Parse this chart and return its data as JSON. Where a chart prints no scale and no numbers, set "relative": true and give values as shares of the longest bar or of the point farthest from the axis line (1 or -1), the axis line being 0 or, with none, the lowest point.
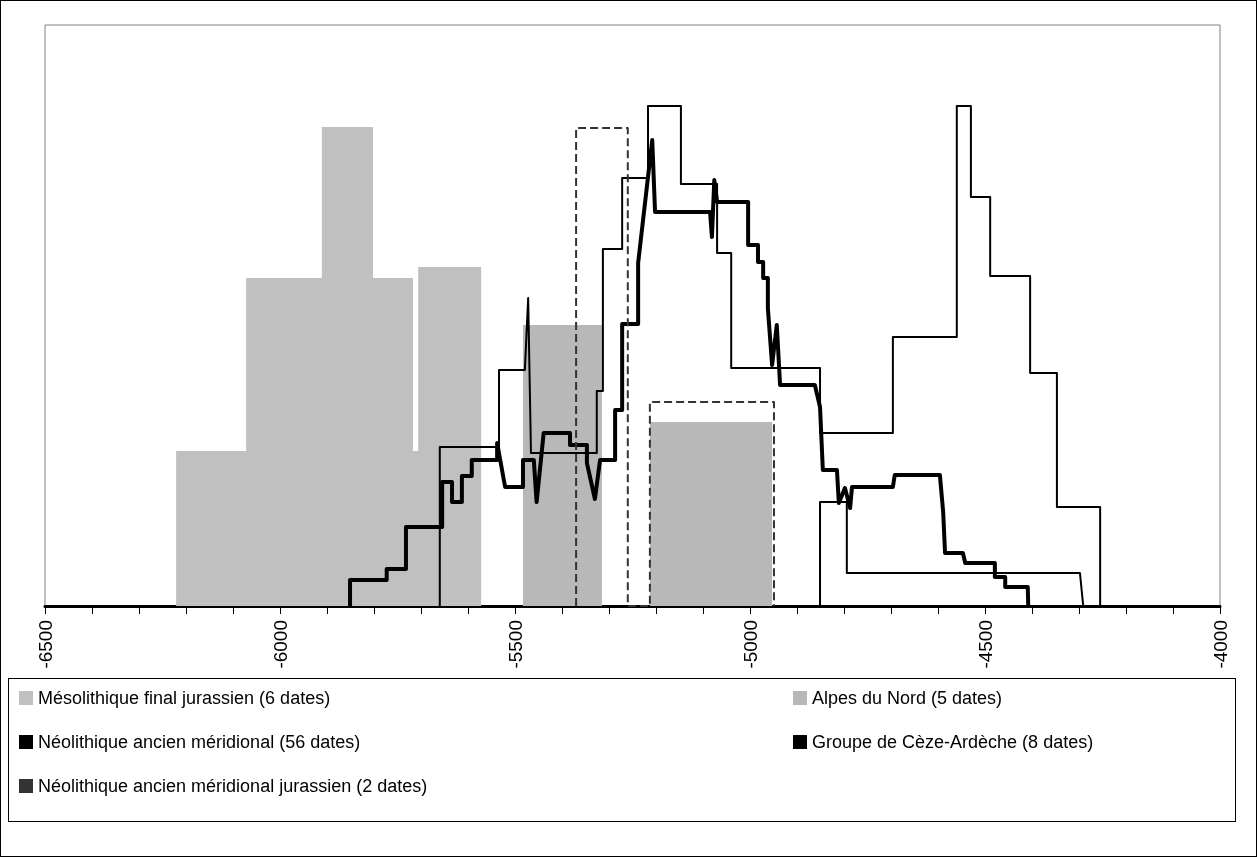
{
  "chart_data": {
    "type": "line",
    "relative": true,
    "xlim": [
      -6500,
      -4000
    ],
    "xticks": [
      -6500,
      -6000,
      -5500,
      -5000,
      -4500,
      -4000
    ],
    "legend": "bottom",
    "marker": "none",
    "grid": false,
    "series": [
      {
        "name": "Mésolithique final jurassien (6 dates)",
        "type": "area",
        "color": "#c0c0c0",
        "x": [
          -6221,
          -6221,
          -6072,
          -6072,
          -5911,
          -5911,
          -5802,
          -5802,
          -5717,
          -5717,
          -5706,
          -5706,
          -5572,
          -5572
        ],
        "values": [
          0,
          0.31,
          0.31,
          0.656,
          0.656,
          0.958,
          0.958,
          0.656,
          0.656,
          0.31,
          0.31,
          0.678,
          0.678,
          0
        ]
      },
      {
        "name": "Alpes du Nord (5 dates)",
        "type": "area",
        "color": "#b8b8b8",
        "x": [
          -5483,
          -5483,
          -5315,
          -5315,
          -5213,
          -5213,
          -4953,
          -4953
        ],
        "values": [
          0,
          0.562,
          0.562,
          0,
          0,
          0.368,
          0.368,
          0
        ]
      },
      {
        "name": "Néolithique ancien méridional (56 dates)",
        "color": "#000000",
        "x": [
          -5851,
          -5851,
          -5773,
          -5773,
          -5732,
          -5732,
          -5655,
          -5655,
          -5634,
          -5634,
          -5613,
          -5613,
          -5592,
          -5592,
          -5538,
          -5538,
          -5521,
          -5521,
          -5483,
          -5483,
          -5460,
          -5454,
          -5439,
          -5383,
          -5383,
          -5347,
          -5347,
          -5330,
          -5319,
          -5287,
          -5287,
          -5272,
          -5272,
          -5238,
          -5238,
          -5208,
          -5202,
          -5085,
          -5081,
          -5076,
          -5070,
          -5004,
          -5004,
          -4983,
          -4983,
          -4972,
          -4972,
          -4962,
          -4962,
          -4953,
          -4943,
          -4936,
          -4862,
          -4851,
          -4845,
          -4815,
          -4811,
          -4798,
          -4787,
          -4783,
          -4696,
          -4692,
          -4596,
          -4589,
          -4585,
          -4547,
          -4542,
          -4479,
          -4479,
          -4457,
          -4457,
          -4409,
          -4408
        ],
        "values": [
          0,
          0.052,
          0.052,
          0.074,
          0.074,
          0.158,
          0.158,
          0.248,
          0.248,
          0.208,
          0.208,
          0.26,
          0.26,
          0.292,
          0.292,
          0.326,
          0.238,
          0.238,
          0.238,
          0.292,
          0.292,
          0.208,
          0.346,
          0.346,
          0.322,
          0.322,
          0.286,
          0.214,
          0.292,
          0.292,
          0.392,
          0.392,
          0.564,
          0.564,
          0.686,
          0.932,
          0.788,
          0.788,
          0.738,
          0.852,
          0.808,
          0.808,
          0.722,
          0.722,
          0.688,
          0.688,
          0.656,
          0.656,
          0.596,
          0.482,
          0.562,
          0.442,
          0.442,
          0.398,
          0.272,
          0.272,
          0.206,
          0.236,
          0.196,
          0.238,
          0.238,
          0.262,
          0.262,
          0.188,
          0.106,
          0.106,
          0.086,
          0.086,
          0.058,
          0.058,
          0.038,
          0.038,
          0
        ]
      },
      {
        "name": "Groupe de Cèze-Ardèche (8 dates)",
        "color": "#000000",
        "x": [
          -5660,
          -5660,
          -5534,
          -5534,
          -5479,
          -5472,
          -5466,
          -5326,
          -5326,
          -5313,
          -5313,
          -5272,
          -5272,
          -5217,
          -5217,
          -5147,
          -5147,
          -5070,
          -5070,
          -5040,
          -5040,
          -4851,
          -4851,
          -4696,
          -4696,
          -4560,
          -4560,
          -4530,
          -4530,
          -4489,
          -4489,
          -4404,
          -4404,
          -4347,
          -4347,
          -4255,
          -4255
        ],
        "values": [
          0,
          0.318,
          0.318,
          0.472,
          0.472,
          0.616,
          0.306,
          0.306,
          0.43,
          0.43,
          0.714,
          0.714,
          0.856,
          0.856,
          1,
          1,
          0.844,
          0.844,
          0.706,
          0.706,
          0.476,
          0.476,
          0.346,
          0.346,
          0.538,
          0.538,
          1,
          1,
          0.818,
          0.818,
          0.66,
          0.66,
          0.466,
          0.466,
          0.198,
          0.198,
          0
        ]
      },
      {
        "color": "#000000",
        "x": [
          -4851,
          -4851,
          -4794,
          -4794,
          -4298,
          -4291
        ],
        "values": [
          0,
          0.208,
          0.208,
          0.066,
          0.066,
          0
        ]
      },
      {
        "name": "Néolithique ancien méridional jurassien (2 dates)",
        "line_style": "dashed",
        "color": "#333333",
        "x": [
          -5370,
          -5370,
          -5260,
          -5260,
          -5213,
          -5213,
          -4949,
          -4949
        ],
        "values": [
          0,
          0.956,
          0.956,
          0,
          0,
          0.408,
          0.408,
          0
        ]
      }
    ]
  }
}
